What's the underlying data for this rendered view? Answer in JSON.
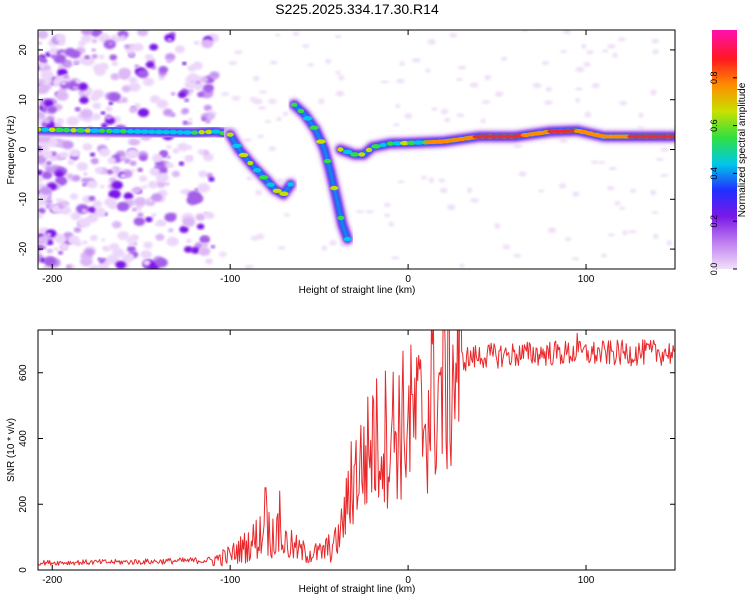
{
  "title": "S225.2025.334.17.30.R14",
  "colors": {
    "snr_line": "#e8282a",
    "ridge_core": "#e0303a",
    "axis": "#000000",
    "colormap": [
      "#f0e0f8",
      "#c080f0",
      "#7a18e8",
      "#2030ff",
      "#00c8e8",
      "#30e040",
      "#c8e000",
      "#ff8c00",
      "#ff1820",
      "#ff10b0"
    ]
  },
  "chart_data": [
    {
      "type": "heatmap",
      "name": "spectrogram",
      "xlabel": "Height of straight line (km)",
      "ylabel": "Frequency (Hz)",
      "xlim": [
        -208,
        150
      ],
      "ylim": [
        -24,
        24
      ],
      "xticks": [
        -200,
        -100,
        0,
        100
      ],
      "yticks": [
        -20,
        -10,
        0,
        10,
        20
      ],
      "colorbar": {
        "label": "Normalized spectral amplitude",
        "range": [
          0,
          1
        ],
        "ticks": [
          0.0,
          0.2,
          0.4,
          0.6,
          0.8
        ]
      },
      "ridge": [
        {
          "segment": "left band",
          "points": [
            [
              -208,
              4
            ],
            [
              -180,
              3.8
            ],
            [
              -150,
              3.6
            ],
            [
              -120,
              3.4
            ],
            [
              -108,
              3.6
            ],
            [
              -100,
              3
            ]
          ]
        },
        {
          "segment": "descending",
          "points": [
            [
              -100,
              3
            ],
            [
              -95,
              0
            ],
            [
              -88,
              -3
            ],
            [
              -80,
              -6
            ],
            [
              -75,
              -8
            ],
            [
              -70,
              -9
            ],
            [
              -66,
              -7
            ]
          ]
        },
        {
          "segment": "steep branch",
          "points": [
            [
              -64,
              9
            ],
            [
              -58,
              7
            ],
            [
              -52,
              4
            ],
            [
              -47,
              0
            ],
            [
              -44,
              -4
            ],
            [
              -40,
              -10
            ],
            [
              -37,
              -15
            ],
            [
              -34,
              -18
            ]
          ]
        },
        {
          "segment": "upper right band",
          "points": [
            [
              -38,
              0
            ],
            [
              -30,
              -1
            ],
            [
              -25,
              -1
            ],
            [
              -20,
              0.5
            ],
            [
              -10,
              1.2
            ],
            [
              0,
              1.3
            ],
            [
              20,
              1.6
            ],
            [
              40,
              2.6
            ],
            [
              60,
              2.6
            ],
            [
              80,
              3.6
            ],
            [
              95,
              3.8
            ],
            [
              110,
              2.6
            ],
            [
              150,
              2.6
            ]
          ]
        }
      ]
    },
    {
      "type": "line",
      "name": "snr",
      "xlabel": "Height of straight line (km)",
      "ylabel": "SNR (10 * v/v)",
      "xlim": [
        -208,
        150
      ],
      "ylim": [
        0,
        730
      ],
      "xticks": [
        -200,
        -100,
        0,
        100
      ],
      "yticks": [
        0,
        200,
        400,
        600
      ],
      "series": [
        {
          "name": "SNR",
          "trend": [
            [
              -208,
              22
            ],
            [
              -150,
              25
            ],
            [
              -110,
              30
            ],
            [
              -100,
              45
            ],
            [
              -90,
              75
            ],
            [
              -80,
              120
            ],
            [
              -75,
              110
            ],
            [
              -70,
              85
            ],
            [
              -60,
              55
            ],
            [
              -50,
              50
            ],
            [
              -40,
              80
            ],
            [
              -35,
              180
            ],
            [
              -30,
              290
            ],
            [
              -25,
              330
            ],
            [
              -20,
              380
            ],
            [
              -10,
              420
            ],
            [
              0,
              450
            ],
            [
              10,
              470
            ],
            [
              15,
              520
            ],
            [
              20,
              560
            ],
            [
              25,
              610
            ],
            [
              30,
              640
            ],
            [
              40,
              650
            ],
            [
              60,
              655
            ],
            [
              80,
              660
            ],
            [
              100,
              658
            ],
            [
              120,
              660
            ],
            [
              150,
              662
            ]
          ],
          "spikes": [
            [
              -80,
              250
            ],
            [
              -72,
              240
            ],
            [
              -32,
              390
            ],
            [
              -20,
              530
            ],
            [
              13,
              740
            ],
            [
              95,
              720
            ]
          ]
        }
      ]
    }
  ]
}
